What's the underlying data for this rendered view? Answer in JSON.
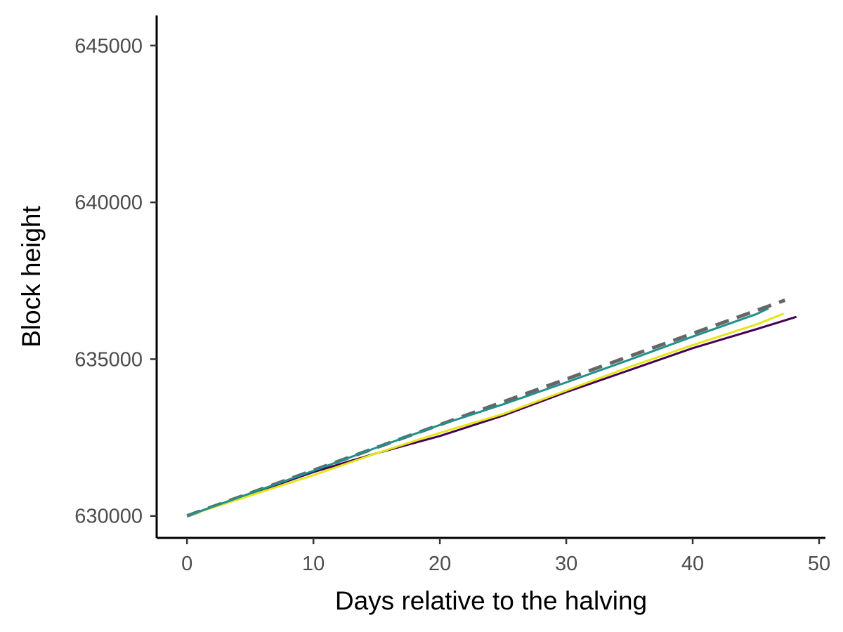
{
  "chart_data": {
    "type": "line",
    "title": "",
    "xlabel": "Days relative to the halving",
    "ylabel": "Block height",
    "xlim": [
      -2.4,
      50.5
    ],
    "ylim": [
      629300,
      645960
    ],
    "x_ticks": [
      0,
      10,
      20,
      30,
      40,
      50
    ],
    "y_ticks": [
      630000,
      635000,
      640000,
      645000
    ],
    "grid": false,
    "legend": "none",
    "series": [
      {
        "color": "#666666",
        "dash": "dashed",
        "x": [
          0,
          47.3
        ],
        "y": [
          630000,
          636880
        ]
      },
      {
        "color": "#440154",
        "dash": "solid",
        "x": [
          0,
          5,
          10,
          15,
          20,
          25,
          30,
          35,
          40,
          45,
          48.2
        ],
        "y": [
          630000,
          630700,
          631400,
          632000,
          632550,
          633200,
          633950,
          634650,
          635350,
          635950,
          636350
        ]
      },
      {
        "color": "#e6e61a",
        "dash": "solid",
        "x": [
          0,
          5,
          10,
          15,
          20,
          25,
          30,
          35,
          40,
          45,
          47.2
        ],
        "y": [
          630000,
          630650,
          631300,
          632000,
          632650,
          633250,
          634000,
          634750,
          635450,
          636100,
          636450
        ]
      },
      {
        "color": "#21908c",
        "dash": "solid",
        "x": [
          0,
          5,
          10,
          15,
          20,
          25,
          30,
          35,
          40,
          45,
          46
        ],
        "y": [
          630000,
          630720,
          631440,
          632180,
          632900,
          633560,
          634260,
          634980,
          635720,
          636430,
          636620
        ]
      }
    ]
  }
}
